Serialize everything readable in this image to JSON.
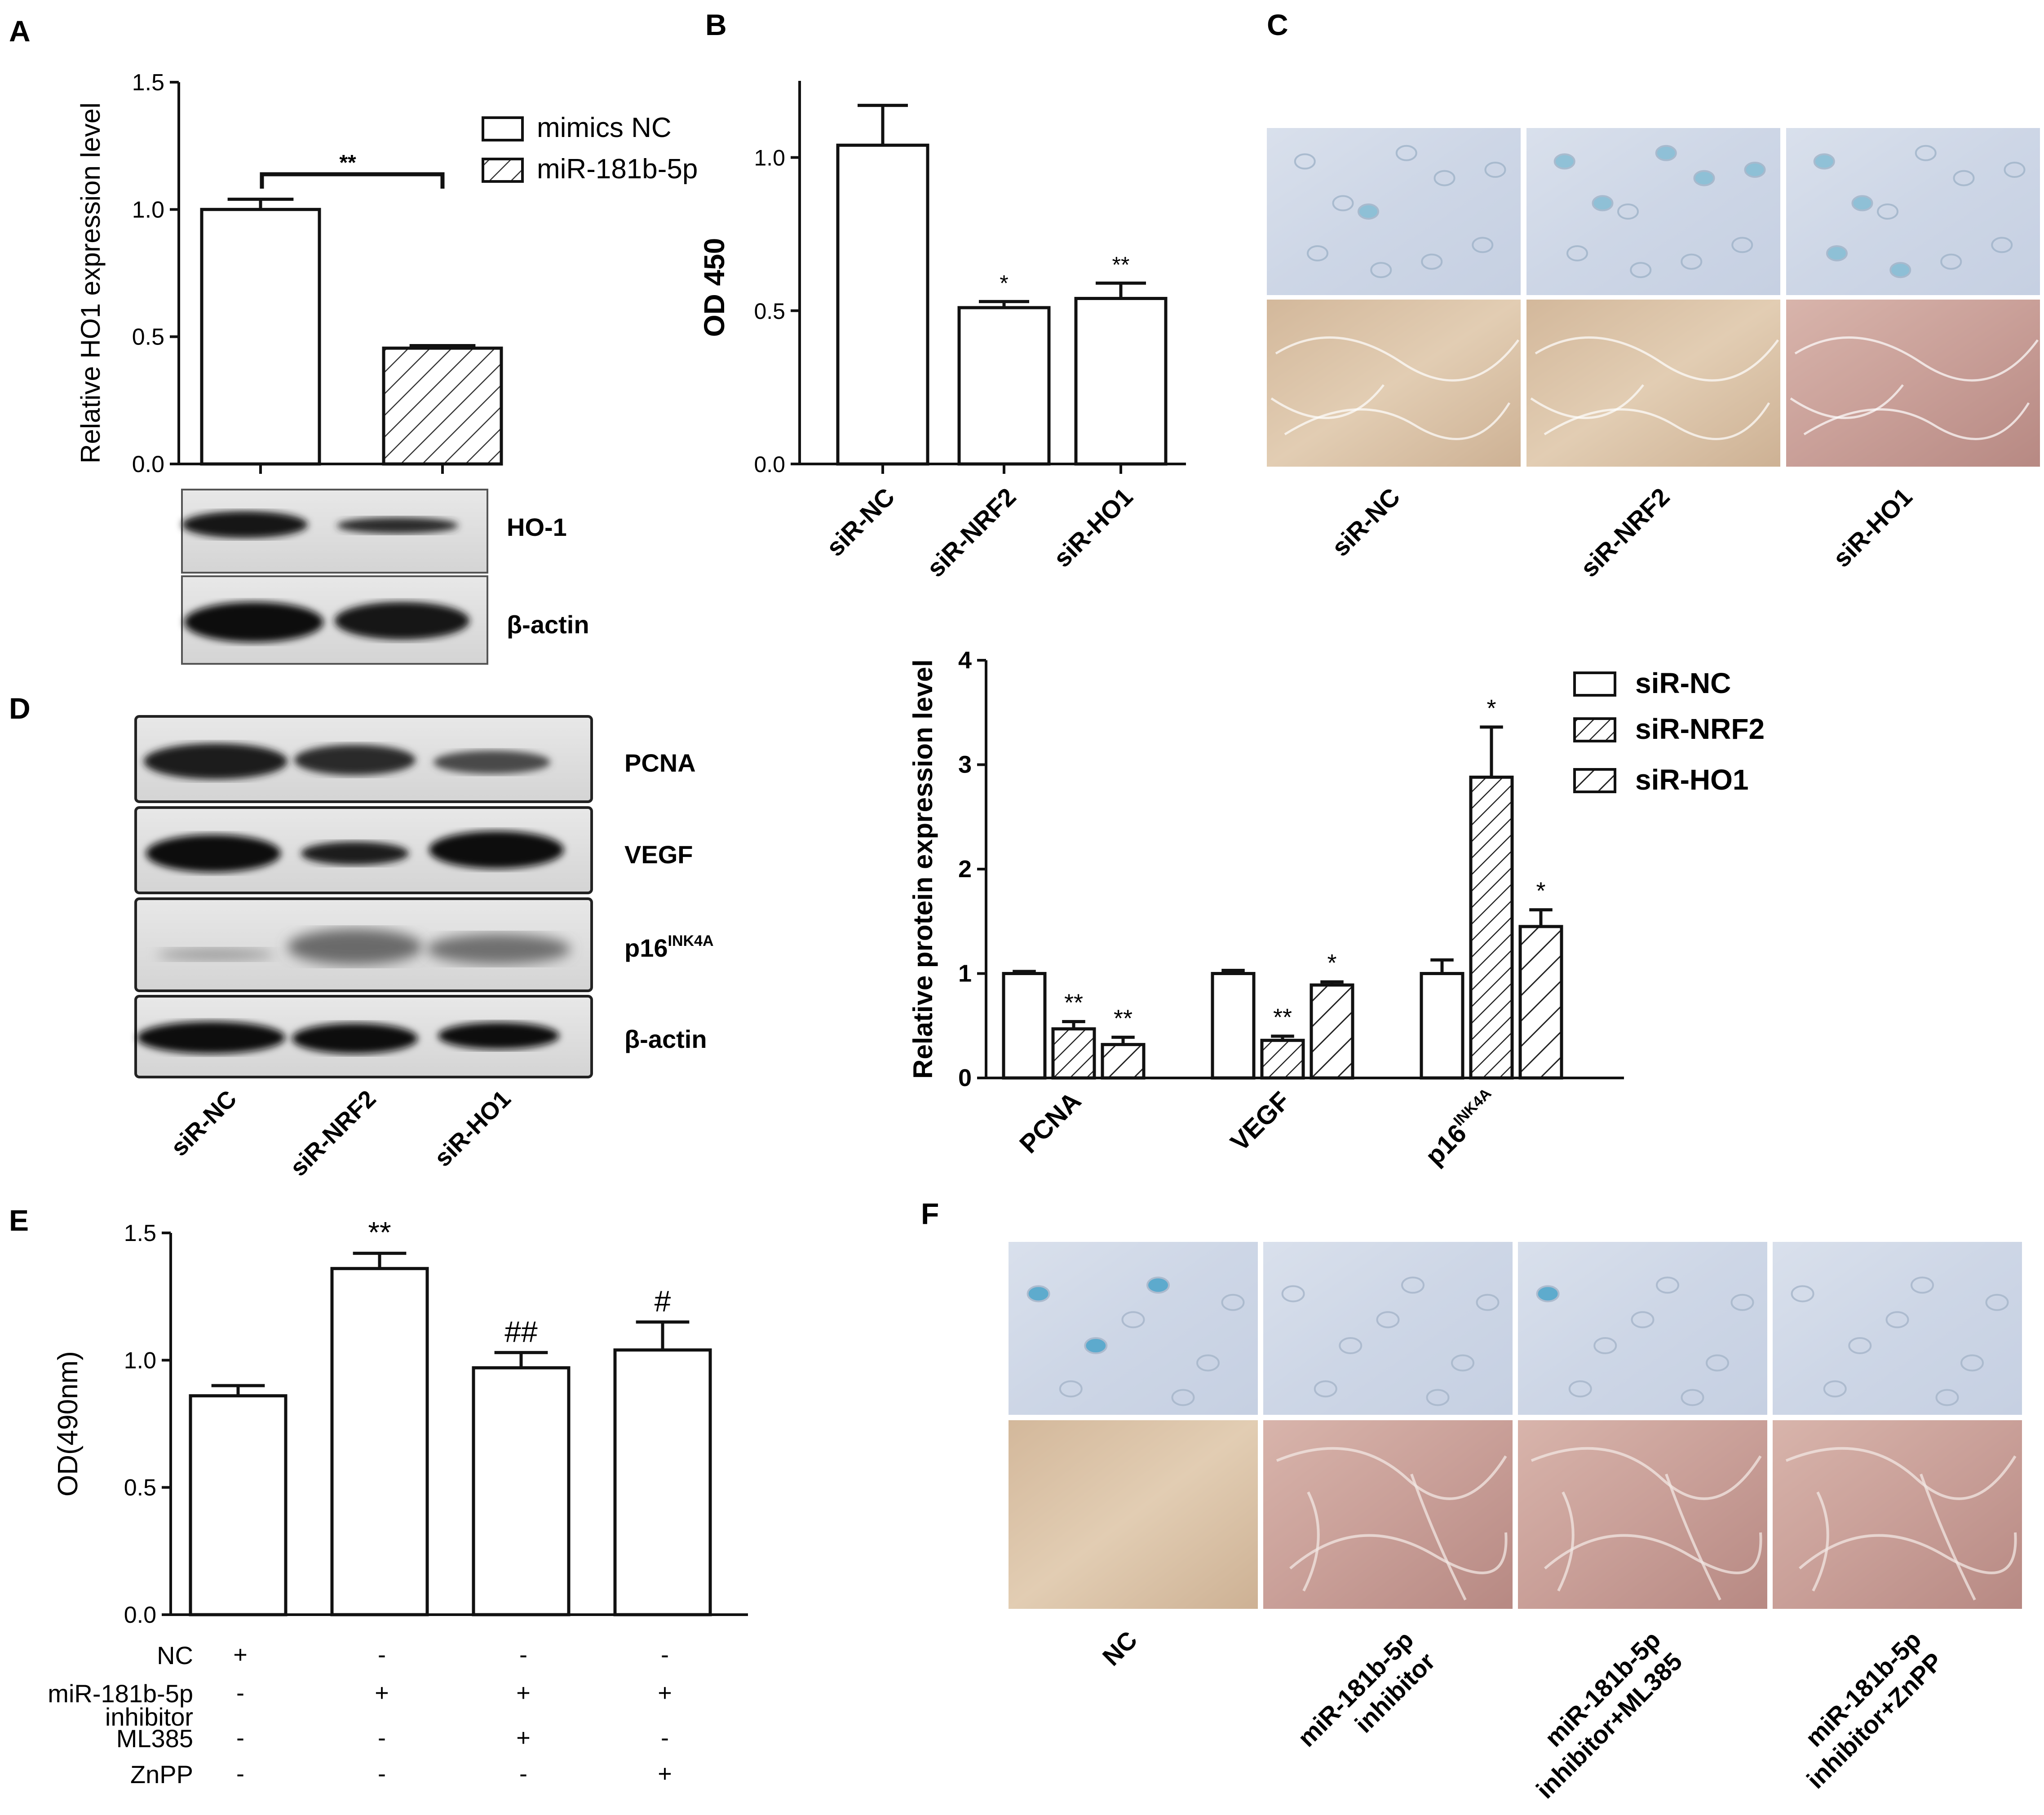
{
  "figure": {
    "panel_letters": [
      "A",
      "B",
      "C",
      "D",
      "E",
      "F"
    ]
  },
  "colors": {
    "bar_fill": "#ffffff",
    "stroke": "#111111",
    "sa_gal_blue": "#4aa3c9",
    "micrograph_top": "#cdd6e6",
    "micrograph_tan": "#d8bfa3",
    "micrograph_pink": "#c99f98"
  },
  "panel_A": {
    "chart_data": {
      "type": "bar",
      "ylabel": "Relative HO1 expression level",
      "ylim": [
        0,
        1.5
      ],
      "yticks": [
        "0.0",
        "0.5",
        "1.0",
        "1.5"
      ],
      "categories": [
        "mimics NC",
        "miR-181b-5p"
      ],
      "values": [
        1.0,
        0.455
      ],
      "errors": [
        0.04,
        0.01
      ],
      "patterns": [
        "open",
        "hatched"
      ],
      "legend": [
        "mimics NC",
        "miR-181b-5p"
      ],
      "legend_position": "top-right",
      "annotations": [
        {
          "text": "**",
          "between": [
            "mimics NC",
            "miR-181b-5p"
          ]
        }
      ]
    },
    "blot": {
      "labels": [
        "HO-1",
        "β-actin"
      ]
    }
  },
  "panel_B": {
    "chart_data": {
      "type": "bar",
      "ylabel": "OD 450",
      "ylim": [
        0,
        1.25
      ],
      "yticks": [
        "0.0",
        "0.5",
        "1.0"
      ],
      "categories": [
        "siR-NC",
        "siR-NRF2",
        "siR-HO1"
      ],
      "values": [
        1.04,
        0.51,
        0.54
      ],
      "errors": [
        0.13,
        0.02,
        0.05
      ],
      "annotations": [
        "",
        "*",
        "**"
      ]
    }
  },
  "panel_C": {
    "labels": [
      "siR-NC",
      "siR-NRF2",
      "siR-HO1"
    ]
  },
  "panel_D": {
    "blot_labels": [
      "PCNA",
      "VEGF",
      "p16",
      "β-actin"
    ],
    "blot_label_sup": "INK4A",
    "lane_labels": [
      "siR-NC",
      "siR-NRF2",
      "siR-HO1"
    ],
    "chart_data": {
      "type": "bar",
      "ylabel": "Relative protein expression level",
      "ylim": [
        0,
        4
      ],
      "yticks": [
        "0",
        "1",
        "2",
        "3",
        "4"
      ],
      "categories": [
        "PCNA",
        "VEGF",
        "p16"
      ],
      "category_sup": [
        "",
        "",
        "INK4A"
      ],
      "series": [
        {
          "name": "siR-NC",
          "pattern": "open",
          "values": [
            1.0,
            1.0,
            1.0
          ],
          "errors": [
            0.02,
            0.03,
            0.13
          ],
          "annotations": [
            "",
            "",
            ""
          ]
        },
        {
          "name": "siR-NRF2",
          "pattern": "hatched-dense",
          "values": [
            0.47,
            0.36,
            2.88
          ],
          "errors": [
            0.07,
            0.04,
            0.48
          ],
          "annotations": [
            "**",
            "**",
            "*"
          ]
        },
        {
          "name": "siR-HO1",
          "pattern": "hatched",
          "values": [
            0.32,
            0.89,
            1.45
          ],
          "errors": [
            0.07,
            0.03,
            0.16
          ],
          "annotations": [
            "**",
            "*",
            "*"
          ]
        }
      ],
      "legend_position": "top-right"
    }
  },
  "panel_E": {
    "chart_data": {
      "type": "bar",
      "ylabel": "OD(490nm)",
      "ylim": [
        0,
        1.5
      ],
      "yticks": [
        "0.0",
        "0.5",
        "1.0",
        "1.5"
      ],
      "values": [
        0.86,
        1.36,
        0.97,
        1.04
      ],
      "errors": [
        0.04,
        0.06,
        0.06,
        0.11
      ],
      "annotations": [
        "",
        "**",
        "##",
        "#"
      ],
      "treatment_rows": [
        {
          "label": "NC",
          "signs": [
            "+",
            "-",
            "-",
            "-"
          ]
        },
        {
          "label": "miR-181b-5p",
          "label2": "inhibitor",
          "signs": [
            "-",
            "+",
            "+",
            "+"
          ]
        },
        {
          "label": "ML385",
          "signs": [
            "-",
            "-",
            "+",
            "-"
          ]
        },
        {
          "label": "ZnPP",
          "signs": [
            "-",
            "-",
            "-",
            "+"
          ]
        }
      ]
    }
  },
  "panel_F": {
    "labels": [
      [
        "NC"
      ],
      [
        "miR-181b-5p",
        "inhibitor"
      ],
      [
        "miR-181b-5p",
        "inhibitor+ML385"
      ],
      [
        "miR-181b-5p",
        "inhibitor+ZnPP"
      ]
    ]
  }
}
